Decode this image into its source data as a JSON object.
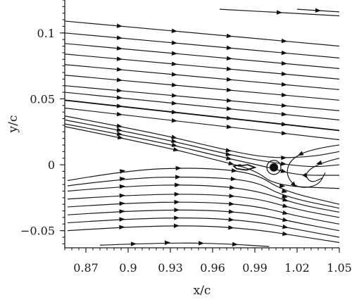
{
  "chart_data": {
    "type": "streamline",
    "xlabel": "x/c",
    "ylabel": "y/c",
    "xlim": [
      0.855,
      1.05
    ],
    "ylim": [
      -0.063,
      0.125
    ],
    "xticks": [
      0.87,
      0.9,
      0.93,
      0.96,
      0.99,
      1.02,
      1.05
    ],
    "xtick_labels": [
      "0.87",
      "0.9",
      "0.93",
      "0.96",
      "0.99",
      "1.02",
      "1.05"
    ],
    "yticks": [
      -0.05,
      0,
      0.05,
      0.1
    ],
    "ytick_labels": [
      "−0.05",
      "0",
      "0.05",
      "0.1"
    ],
    "upper_streamlines": [
      {
        "start": [
          0.855,
          0.109
        ],
        "end": [
          1.05,
          0.09
        ]
      },
      {
        "start": [
          0.855,
          0.1
        ],
        "end": [
          1.05,
          0.081
        ]
      },
      {
        "start": [
          0.855,
          0.092
        ],
        "end": [
          1.05,
          0.073
        ]
      },
      {
        "start": [
          0.855,
          0.084
        ],
        "end": [
          1.05,
          0.065
        ]
      },
      {
        "start": [
          0.855,
          0.076
        ],
        "end": [
          1.05,
          0.057
        ]
      },
      {
        "start": [
          0.855,
          0.068
        ],
        "end": [
          1.05,
          0.049
        ]
      },
      {
        "start": [
          0.855,
          0.06
        ],
        "end": [
          1.05,
          0.041
        ]
      },
      {
        "start": [
          0.855,
          0.055
        ],
        "end": [
          1.05,
          0.034
        ]
      },
      {
        "start": [
          0.855,
          0.049
        ],
        "end": [
          1.05,
          0.026
        ]
      },
      {
        "start": [
          0.855,
          0.043
        ],
        "end": [
          1.05,
          0.019
        ]
      }
    ],
    "short_streamlines": [
      {
        "start": [
          0.965,
          0.118
        ],
        "end": [
          1.05,
          0.113
        ]
      },
      {
        "start": [
          1.02,
          0.118
        ],
        "end": [
          1.05,
          0.116
        ]
      }
    ],
    "shear_layer_streamlines": [
      {
        "points": [
          [
            0.855,
            0.037
          ],
          [
            0.92,
            0.024
          ],
          [
            0.97,
            0.011
          ],
          [
            1.0,
            0.005
          ],
          [
            1.03,
            0.006
          ],
          [
            1.05,
            0.01
          ]
        ]
      },
      {
        "points": [
          [
            0.855,
            0.034
          ],
          [
            0.92,
            0.021
          ],
          [
            0.97,
            0.008
          ],
          [
            1.0,
            0.002
          ],
          [
            1.03,
            -0.002
          ],
          [
            1.05,
            0.0
          ]
        ]
      },
      {
        "points": [
          [
            0.855,
            0.031
          ],
          [
            0.92,
            0.018
          ],
          [
            0.97,
            0.005
          ],
          [
            1.0,
            -0.002
          ],
          [
            1.02,
            -0.008
          ],
          [
            1.05,
            -0.008
          ]
        ]
      },
      {
        "points": [
          [
            0.855,
            0.029
          ],
          [
            0.92,
            0.015
          ],
          [
            0.965,
            0.003
          ],
          [
            0.99,
            -0.004
          ],
          [
            1.005,
            -0.016
          ],
          [
            1.05,
            -0.018
          ]
        ]
      }
    ],
    "lower_streamlines": [
      {
        "points": [
          [
            0.857,
            -0.012
          ],
          [
            0.9,
            -0.004
          ],
          [
            0.95,
            -0.002
          ],
          [
            0.99,
            -0.006
          ],
          [
            1.01,
            -0.02
          ],
          [
            1.05,
            -0.03
          ]
        ]
      },
      {
        "points": [
          [
            0.857,
            -0.016
          ],
          [
            0.9,
            -0.01
          ],
          [
            0.95,
            -0.009
          ],
          [
            0.99,
            -0.012
          ],
          [
            1.01,
            -0.024
          ],
          [
            1.05,
            -0.033
          ]
        ]
      },
      {
        "points": [
          [
            0.857,
            -0.02
          ],
          [
            0.9,
            -0.016
          ],
          [
            0.95,
            -0.015
          ],
          [
            0.99,
            -0.019
          ],
          [
            1.02,
            -0.03
          ],
          [
            1.05,
            -0.036
          ]
        ]
      },
      {
        "points": [
          [
            0.857,
            -0.026
          ],
          [
            0.9,
            -0.023
          ],
          [
            0.95,
            -0.022
          ],
          [
            0.99,
            -0.025
          ],
          [
            1.02,
            -0.034
          ],
          [
            1.05,
            -0.04
          ]
        ]
      },
      {
        "points": [
          [
            0.857,
            -0.032
          ],
          [
            0.9,
            -0.029
          ],
          [
            0.95,
            -0.028
          ],
          [
            0.99,
            -0.031
          ],
          [
            1.02,
            -0.039
          ],
          [
            1.05,
            -0.045
          ]
        ]
      },
      {
        "points": [
          [
            0.857,
            -0.038
          ],
          [
            0.9,
            -0.035
          ],
          [
            0.95,
            -0.034
          ],
          [
            0.99,
            -0.037
          ],
          [
            1.02,
            -0.044
          ],
          [
            1.05,
            -0.05
          ]
        ]
      },
      {
        "points": [
          [
            0.857,
            -0.044
          ],
          [
            0.9,
            -0.041
          ],
          [
            0.95,
            -0.04
          ],
          [
            0.99,
            -0.043
          ],
          [
            1.02,
            -0.049
          ],
          [
            1.05,
            -0.055
          ]
        ]
      },
      {
        "points": [
          [
            0.857,
            -0.05
          ],
          [
            0.9,
            -0.047
          ],
          [
            0.95,
            -0.046
          ],
          [
            0.99,
            -0.049
          ],
          [
            1.02,
            -0.054
          ],
          [
            1.05,
            -0.059
          ]
        ]
      },
      {
        "points": [
          [
            0.88,
            -0.061
          ],
          [
            0.93,
            -0.059
          ],
          [
            0.97,
            -0.06
          ],
          [
            1.0,
            -0.062
          ]
        ]
      }
    ],
    "vortex_streamlines": [
      {
        "points": [
          [
            1.05,
            0.015
          ],
          [
            1.03,
            0.012
          ],
          [
            1.015,
            0.004
          ],
          [
            1.012,
            -0.008
          ],
          [
            1.02,
            -0.018
          ],
          [
            1.035,
            -0.016
          ],
          [
            1.04,
            -0.006
          ]
        ]
      },
      {
        "points": [
          [
            1.05,
            0.005
          ],
          [
            1.035,
            0.001
          ],
          [
            1.025,
            -0.007
          ],
          [
            1.03,
            -0.014
          ],
          [
            1.038,
            -0.01
          ]
        ]
      }
    ],
    "wake_loop": {
      "points": [
        [
          0.978,
          -0.001
        ],
        [
          0.985,
          0.0
        ],
        [
          0.99,
          -0.002
        ],
        [
          0.984,
          -0.004
        ],
        [
          0.977,
          -0.003
        ],
        [
          0.975,
          -0.001
        ],
        [
          0.98,
          0.0
        ]
      ]
    },
    "singular_point": [
      1.0035,
      -0.002
    ]
  }
}
